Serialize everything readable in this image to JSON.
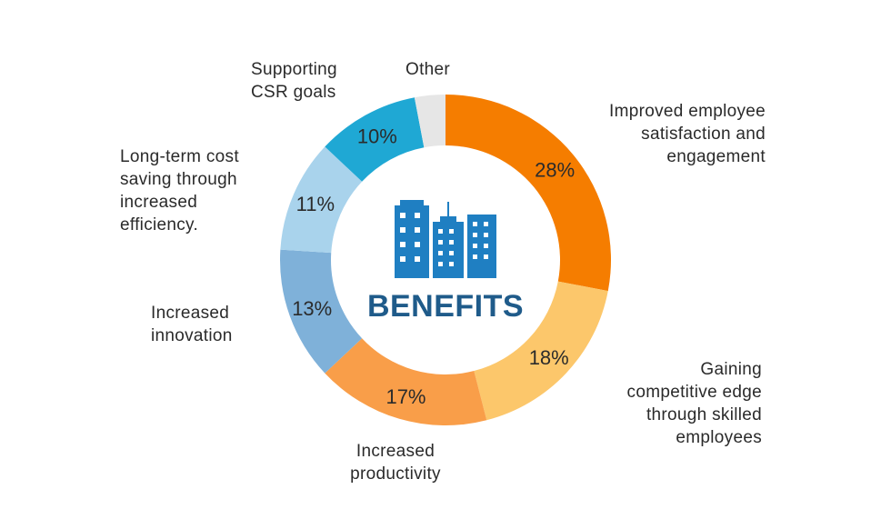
{
  "chart_data": {
    "type": "pie",
    "style": "donut",
    "center_text": "BENEFITS",
    "center_icon": "buildings-icon",
    "slices": [
      {
        "label": "Improved employee satisfaction and engagement",
        "value": 28,
        "value_label": "28%",
        "color": "#f57d00",
        "lines": [
          "Improved employee",
          "satisfaction and",
          "engagement"
        ]
      },
      {
        "label": "Gaining competitive edge through skilled employees",
        "value": 18,
        "value_label": "18%",
        "color": "#fcc76b",
        "lines": [
          "Gaining",
          "competitive edge",
          "through skilled",
          "employees"
        ]
      },
      {
        "label": "Increased productivity",
        "value": 17,
        "value_label": "17%",
        "color": "#f99e49",
        "lines": [
          "Increased",
          "productivity"
        ]
      },
      {
        "label": "Increased innovation",
        "value": 13,
        "value_label": "13%",
        "color": "#7fb1d9",
        "lines": [
          "Increased",
          "innovation"
        ]
      },
      {
        "label": "Long-term cost saving through increased efficiency.",
        "value": 11,
        "value_label": "11%",
        "color": "#a9d3ec",
        "lines": [
          "Long-term cost",
          "saving through",
          "increased",
          "efficiency."
        ]
      },
      {
        "label": "Supporting CSR goals",
        "value": 10,
        "value_label": "10%",
        "color": "#1fa8d4",
        "lines": [
          "Supporting",
          "CSR goals"
        ]
      },
      {
        "label": "Other",
        "value": 3,
        "value_label": "",
        "color": "#e6e6e6",
        "lines": [
          "Other"
        ]
      }
    ]
  }
}
